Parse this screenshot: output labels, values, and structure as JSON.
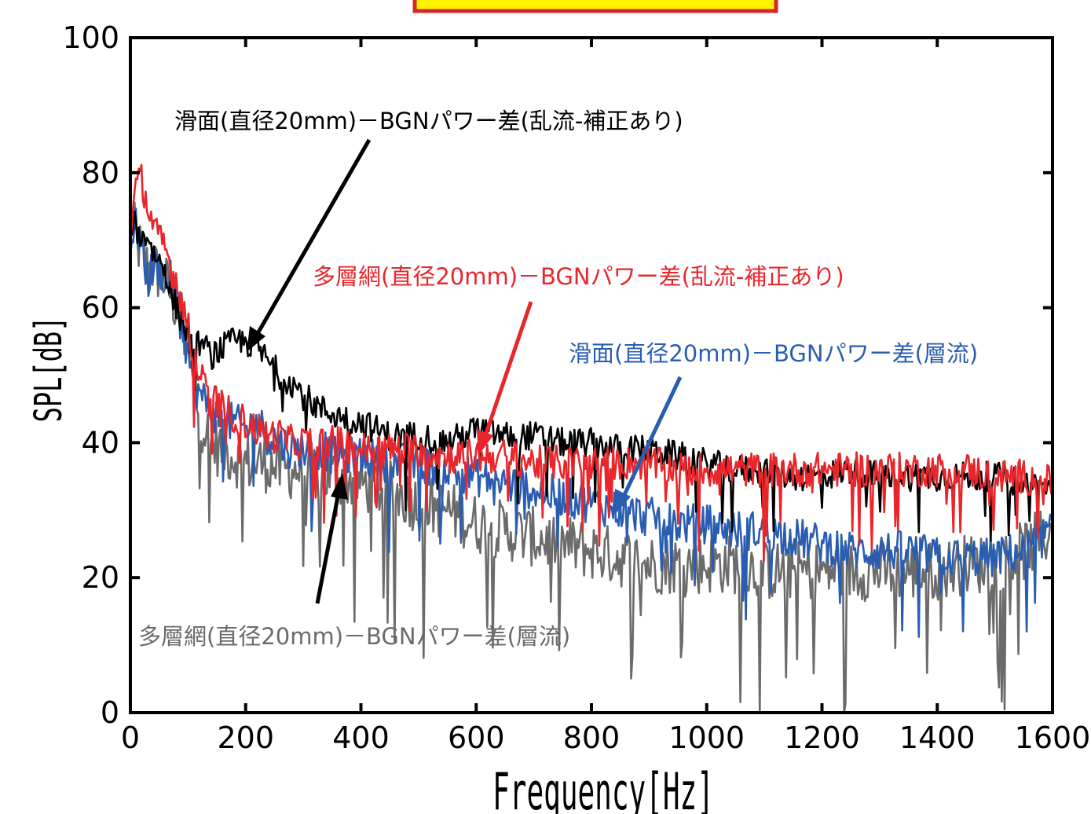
{
  "chart_data": {
    "type": "line",
    "title": "",
    "xlabel": "Frequency[Hz]",
    "ylabel": "SPL[dB]",
    "xlim": [
      0,
      1600
    ],
    "ylim": [
      0,
      100
    ],
    "xticks": [
      0,
      200,
      400,
      600,
      800,
      1000,
      1200,
      1400,
      1600
    ],
    "yticks": [
      0,
      20,
      40,
      60,
      80,
      100
    ],
    "grid": false,
    "legend": "none",
    "colors": {
      "smooth_turbulent": "#000000",
      "mesh_turbulent": "#e8262b",
      "smooth_laminar": "#2a5db0",
      "mesh_laminar": "#6b6b6b",
      "banner_fill": "#fff200",
      "banner_border": "#d7262b"
    },
    "annotations": [
      {
        "id": "smooth_turbulent",
        "text": "滑面(直径20mm)－BGNパワー差(乱流-補正あり)",
        "point": [
          200,
          55
        ]
      },
      {
        "id": "mesh_turbulent",
        "text": "多層網(直径20mm)－BGNパワー差(乱流-補正あり)",
        "point": [
          600,
          39
        ]
      },
      {
        "id": "smooth_laminar",
        "text": "滑面(直径20mm)－BGNパワー差(層流)",
        "point": [
          830,
          30
        ]
      },
      {
        "id": "mesh_laminar",
        "text": "多層網(直径20mm)－BGNパワー差(層流)",
        "point": [
          370,
          35
        ]
      }
    ],
    "series": [
      {
        "id": "smooth_turbulent",
        "x": [
          0,
          10,
          20,
          30,
          40,
          50,
          60,
          70,
          80,
          90,
          100,
          110,
          120,
          130,
          140,
          160,
          180,
          200,
          220,
          240,
          260,
          280,
          300,
          330,
          360,
          400,
          450,
          500,
          550,
          600,
          650,
          700,
          750,
          800,
          850,
          900,
          950,
          1000,
          1050,
          1100,
          1150,
          1200,
          1250,
          1300,
          1350,
          1400,
          1450,
          1500,
          1550,
          1600
        ],
        "values": [
          73,
          72,
          70,
          71,
          68,
          67,
          66,
          62,
          60,
          58,
          56,
          53,
          55,
          54,
          53,
          54,
          55,
          55,
          54,
          52,
          50,
          49,
          47,
          45,
          44,
          43,
          41,
          41,
          40,
          42,
          41,
          41,
          40,
          40,
          39,
          39,
          38,
          37,
          36,
          36,
          35,
          35,
          36,
          35,
          35,
          35,
          35,
          35,
          34,
          33
        ]
      },
      {
        "id": "mesh_turbulent",
        "x": [
          0,
          10,
          20,
          30,
          40,
          50,
          60,
          70,
          80,
          90,
          100,
          110,
          120,
          130,
          140,
          160,
          180,
          200,
          220,
          240,
          260,
          280,
          300,
          330,
          360,
          400,
          450,
          500,
          550,
          600,
          650,
          700,
          750,
          800,
          850,
          900,
          950,
          1000,
          1050,
          1100,
          1150,
          1200,
          1250,
          1300,
          1350,
          1400,
          1450,
          1500,
          1550,
          1600
        ],
        "values": [
          72,
          78,
          79,
          75,
          72,
          70,
          69,
          66,
          64,
          61,
          57,
          53,
          50,
          48,
          47,
          45,
          44,
          43,
          42,
          41,
          41,
          40,
          40,
          40,
          40,
          39,
          39,
          39,
          38,
          38,
          38,
          37,
          37,
          37,
          37,
          37,
          36,
          36,
          36,
          36,
          36,
          36,
          36,
          36,
          36,
          36,
          36,
          35,
          35,
          34
        ]
      },
      {
        "id": "smooth_laminar",
        "x": [
          0,
          10,
          20,
          30,
          40,
          50,
          60,
          70,
          80,
          90,
          100,
          110,
          120,
          130,
          140,
          160,
          180,
          200,
          220,
          240,
          260,
          280,
          300,
          330,
          360,
          400,
          450,
          500,
          550,
          600,
          650,
          700,
          750,
          800,
          850,
          900,
          950,
          1000,
          1050,
          1100,
          1150,
          1200,
          1250,
          1300,
          1350,
          1400,
          1450,
          1500,
          1550,
          1600
        ],
        "values": [
          70,
          72,
          69,
          64,
          66,
          66,
          64,
          64,
          61,
          57,
          53,
          49,
          47,
          46,
          45,
          43,
          43,
          42,
          43,
          41,
          40,
          39,
          39,
          39,
          38,
          38,
          37,
          37,
          36,
          35,
          34,
          33,
          32,
          31,
          30,
          29,
          28,
          28,
          27,
          27,
          26,
          25,
          24,
          24,
          24,
          23,
          23,
          23,
          24,
          27
        ]
      },
      {
        "id": "mesh_laminar",
        "x": [
          0,
          10,
          20,
          30,
          40,
          50,
          60,
          70,
          80,
          90,
          100,
          110,
          120,
          130,
          140,
          160,
          180,
          200,
          220,
          240,
          260,
          280,
          300,
          330,
          360,
          400,
          450,
          500,
          550,
          600,
          650,
          700,
          750,
          800,
          850,
          900,
          950,
          1000,
          1050,
          1100,
          1150,
          1200,
          1250,
          1300,
          1350,
          1400,
          1450,
          1500,
          1550,
          1600
        ],
        "values": [
          74,
          70,
          68,
          66,
          66,
          65,
          64,
          62,
          60,
          57,
          53,
          48,
          44,
          42,
          40,
          39,
          38,
          37,
          37,
          37,
          36,
          36,
          36,
          35,
          35,
          34,
          33,
          31,
          30,
          28,
          27,
          26,
          25,
          24,
          23,
          22,
          22,
          22,
          22,
          21,
          21,
          21,
          21,
          21,
          21,
          21,
          22,
          22,
          24,
          27
        ]
      }
    ]
  }
}
